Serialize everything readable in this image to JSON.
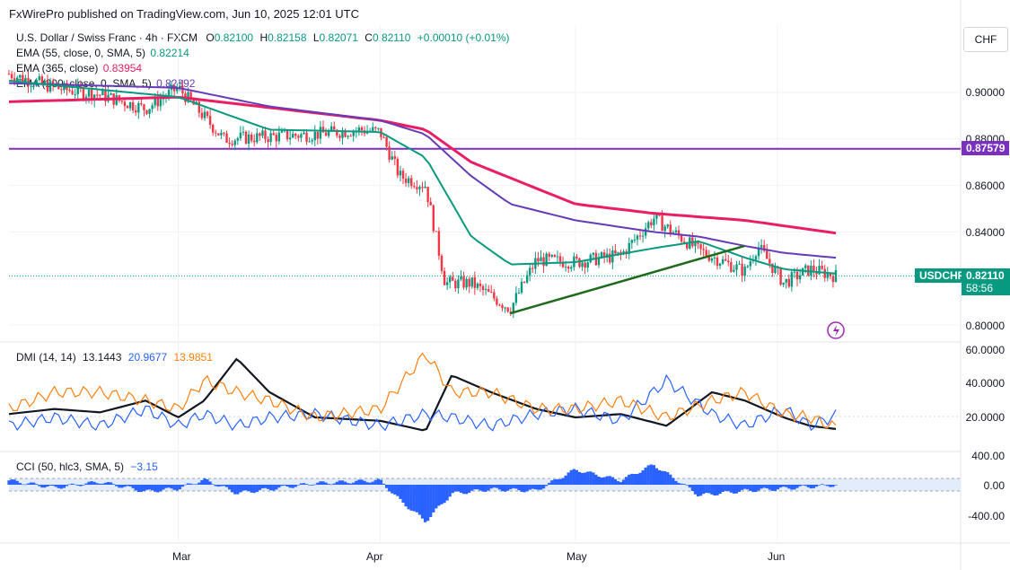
{
  "header": {
    "publisher": "FxWirePro published on TradingView.com, Jun 10, 2025 12:01 UTC"
  },
  "symbol": {
    "name": "U.S. Dollar / Swiss Franc · 4h · FXCM",
    "o_label": "O",
    "o": "0.82100",
    "h_label": "H",
    "h": "0.82158",
    "l_label": "L",
    "l": "0.82071",
    "c_label": "C",
    "c": "0.82110",
    "change": "+0.00010 (+0.01%)"
  },
  "indicators": [
    {
      "label": "EMA (55, close, 0, SMA, 5)",
      "value": "0.82214",
      "color": "#089981"
    },
    {
      "label": "EMA (365, close)",
      "value": "0.83954",
      "color": "#e91e63"
    },
    {
      "label": "EMA (200, close, 0, SMA, 5)",
      "value": "0.82892",
      "color": "#673ab7"
    }
  ],
  "currency": "CHF",
  "price_axis": [
    "0.90000",
    "0.88000",
    "0.86000",
    "0.84000",
    "0.80000"
  ],
  "hline_value": "0.87579",
  "price_tag": {
    "symbol": "USDCHF",
    "price": "0.82110",
    "countdown": "58:56"
  },
  "dmi": {
    "label": "DMI (14, 14)",
    "v1": "13.1443",
    "v2": "20.9677",
    "v3": "13.9851",
    "axis": [
      "60.0000",
      "40.0000",
      "20.0000"
    ]
  },
  "cci": {
    "label": "CCI (50, hlc3, SMA, 5)",
    "value": "−3.15",
    "axis": [
      "400.00",
      "0.00",
      "-400.00"
    ]
  },
  "x_axis": [
    "Mar",
    "Apr",
    "May",
    "Jun"
  ],
  "colors": {
    "up": "#089981",
    "down": "#f23645",
    "ema55": "#089981",
    "ema365": "#e91e63",
    "ema200": "#673ab7",
    "hline": "#7b2fbf",
    "trend": "#1e6b1e",
    "adx": "#131722",
    "di_plus": "#2962ff",
    "di_minus": "#ff7f0e",
    "cci": "#2962ff"
  },
  "chart_data": [
    {
      "type": "candlestick",
      "title": "U.S. Dollar / Swiss Franc · 4h · FXCM",
      "ylim": [
        0.795,
        0.915
      ],
      "x_labels": [
        "Mar",
        "Apr",
        "May",
        "Jun"
      ],
      "price_anchors": {
        "x": [
          "Feb 3",
          "Feb 10",
          "Feb 17",
          "Feb 24",
          "Mar 1",
          "Mar 8",
          "Mar 15",
          "Mar 22",
          "Mar 29",
          "Apr 1",
          "Apr 4",
          "Apr 8",
          "Apr 11",
          "Apr 15",
          "Apr 21",
          "Apr 25",
          "May 1",
          "May 8",
          "May 13",
          "May 20",
          "May 27",
          "May 29",
          "Jun 2",
          "Jun 6",
          "Jun 10"
        ],
        "close": [
          0.908,
          0.902,
          0.899,
          0.893,
          0.902,
          0.88,
          0.881,
          0.882,
          0.884,
          0.883,
          0.864,
          0.86,
          0.818,
          0.818,
          0.807,
          0.828,
          0.827,
          0.83,
          0.846,
          0.832,
          0.823,
          0.834,
          0.818,
          0.824,
          0.8211
        ]
      },
      "ema55": {
        "x": [
          "Feb 3",
          "Mar 1",
          "Mar 15",
          "Apr 1",
          "Apr 8",
          "Apr 15",
          "Apr 21",
          "May 1",
          "May 13",
          "May 20",
          "May 27",
          "Jun 2",
          "Jun 10"
        ],
        "y": [
          0.905,
          0.898,
          0.884,
          0.883,
          0.872,
          0.838,
          0.826,
          0.827,
          0.833,
          0.836,
          0.829,
          0.824,
          0.8221
        ]
      },
      "ema200": {
        "x": [
          "Feb 3",
          "Mar 1",
          "Mar 15",
          "Apr 1",
          "Apr 8",
          "Apr 15",
          "Apr 21",
          "May 1",
          "May 13",
          "May 20",
          "May 27",
          "Jun 2",
          "Jun 10"
        ],
        "y": [
          0.904,
          0.902,
          0.894,
          0.888,
          0.882,
          0.864,
          0.852,
          0.845,
          0.84,
          0.838,
          0.834,
          0.831,
          0.8289
        ]
      },
      "ema365": {
        "x": [
          "Feb 3",
          "Mar 1",
          "Apr 1",
          "Apr 8",
          "Apr 15",
          "May 1",
          "May 13",
          "May 27",
          "Jun 10"
        ],
        "y": [
          0.896,
          0.898,
          0.888,
          0.884,
          0.87,
          0.852,
          0.848,
          0.845,
          0.8395
        ]
      },
      "horizontal_line": 0.87579,
      "trendline": {
        "x": [
          "Apr 21",
          "May 27"
        ],
        "y": [
          0.805,
          0.834
        ]
      }
    },
    {
      "type": "line",
      "title": "DMI (14, 14)",
      "ylim": [
        10,
        60
      ],
      "x": [
        "Feb 3",
        "Feb 10",
        "Feb 17",
        "Feb 24",
        "Mar 1",
        "Mar 5",
        "Mar 10",
        "Mar 15",
        "Mar 22",
        "Apr 1",
        "Apr 8",
        "Apr 12",
        "Apr 18",
        "Apr 25",
        "May 1",
        "May 8",
        "May 15",
        "May 22",
        "May 27",
        "Jun 2",
        "Jun 6",
        "Jun 10"
      ],
      "series": [
        {
          "name": "ADX",
          "values": [
            22,
            25,
            23,
            30,
            20,
            30,
            55,
            35,
            20,
            18,
            12,
            45,
            35,
            25,
            20,
            22,
            15,
            35,
            30,
            20,
            15,
            13.1
          ]
        },
        {
          "name": "+DI",
          "values": [
            15,
            20,
            15,
            25,
            15,
            22,
            15,
            20,
            22,
            15,
            22,
            20,
            15,
            22,
            25,
            18,
            42,
            22,
            15,
            25,
            15,
            21.0
          ]
        },
        {
          "name": "-DI",
          "values": [
            25,
            35,
            35,
            30,
            25,
            42,
            35,
            30,
            20,
            25,
            58,
            35,
            35,
            25,
            25,
            30,
            20,
            30,
            35,
            22,
            20,
            14.0
          ]
        }
      ]
    },
    {
      "type": "bar",
      "title": "CCI (50, hlc3, SMA, 5)",
      "ylim": [
        -500,
        420
      ],
      "x": [
        "Feb 3",
        "Feb 10",
        "Feb 17",
        "Feb 24",
        "Mar 1",
        "Mar 5",
        "Mar 10",
        "Mar 15",
        "Mar 22",
        "Apr 1",
        "Apr 4",
        "Apr 8",
        "Apr 12",
        "Apr 18",
        "Apr 25",
        "May 1",
        "May 8",
        "May 13",
        "May 20",
        "May 27",
        "Jun 2",
        "Jun 10"
      ],
      "values": [
        60,
        -40,
        40,
        -90,
        -50,
        70,
        -110,
        -60,
        20,
        60,
        -200,
        -480,
        -120,
        -60,
        -80,
        210,
        60,
        280,
        -140,
        -80,
        -50,
        -3.15
      ]
    }
  ]
}
